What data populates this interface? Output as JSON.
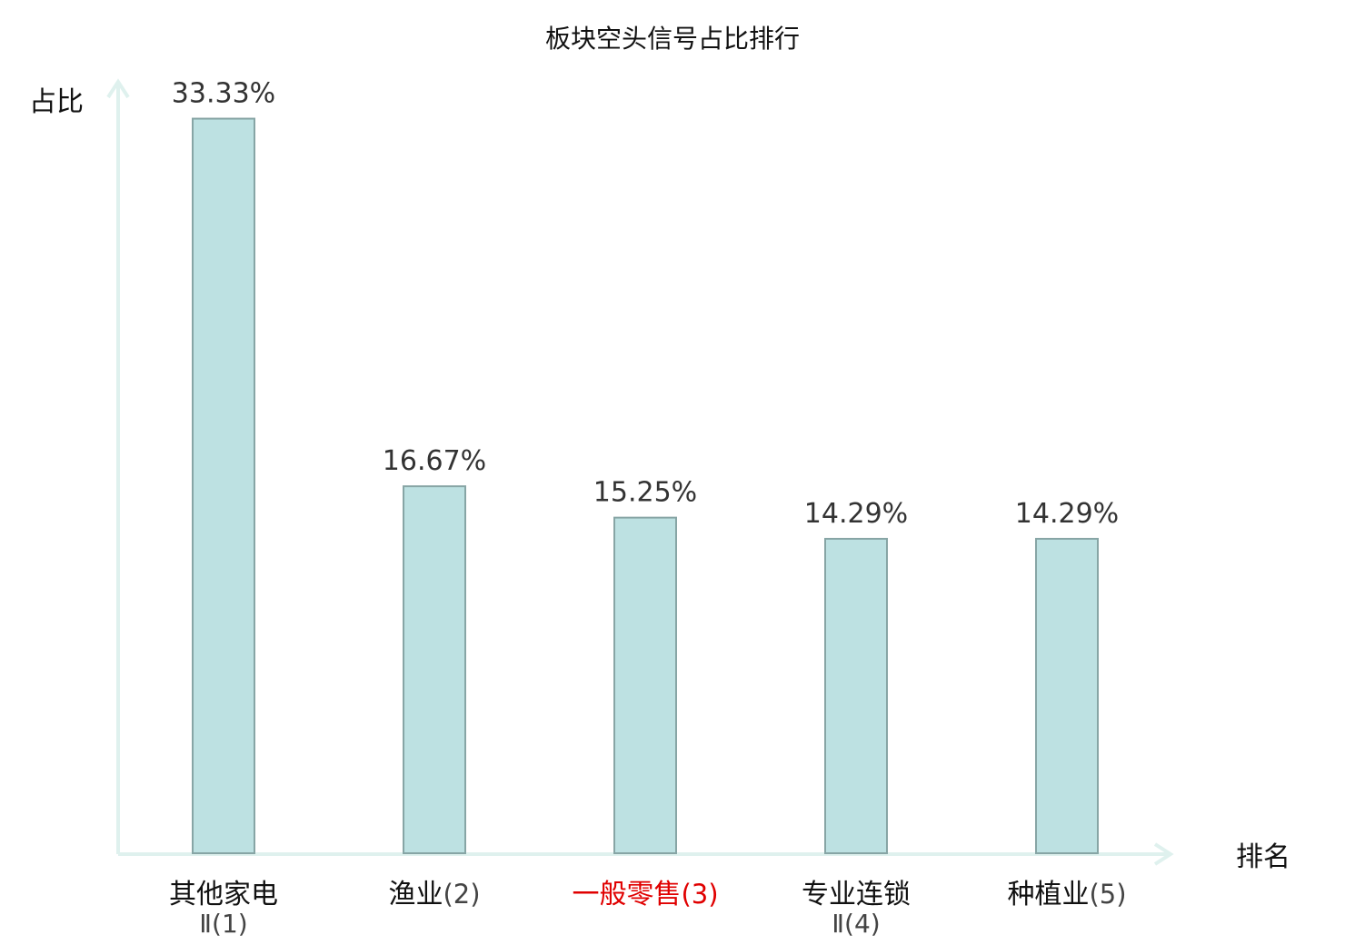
{
  "chart_data": {
    "type": "bar",
    "title": "板块空头信号占比排行",
    "ylabel": "占比",
    "xlabel": "排名",
    "ylim": [
      0,
      35
    ],
    "grid": false,
    "categories": [
      {
        "name": "其他家电",
        "sub": "Ⅱ(1)",
        "rank": ""
      },
      {
        "name": "渔业",
        "sub": "",
        "rank": "(2)"
      },
      {
        "name": "一般零售",
        "sub": "",
        "rank": "(3)",
        "highlight": true
      },
      {
        "name": "专业连锁",
        "sub": "Ⅱ(4)",
        "rank": ""
      },
      {
        "name": "种植业",
        "sub": "",
        "rank": "(5)"
      }
    ],
    "values": [
      33.33,
      16.67,
      15.25,
      14.29,
      14.29
    ],
    "value_labels": [
      "33.33%",
      "16.67%",
      "15.25%",
      "14.29%",
      "14.29%"
    ],
    "colors": {
      "bar_fill": "#bde1e2",
      "bar_stroke": "#87a5a5",
      "axis": "#dff1ee",
      "highlight": "#e00000",
      "text": "#111111"
    }
  }
}
